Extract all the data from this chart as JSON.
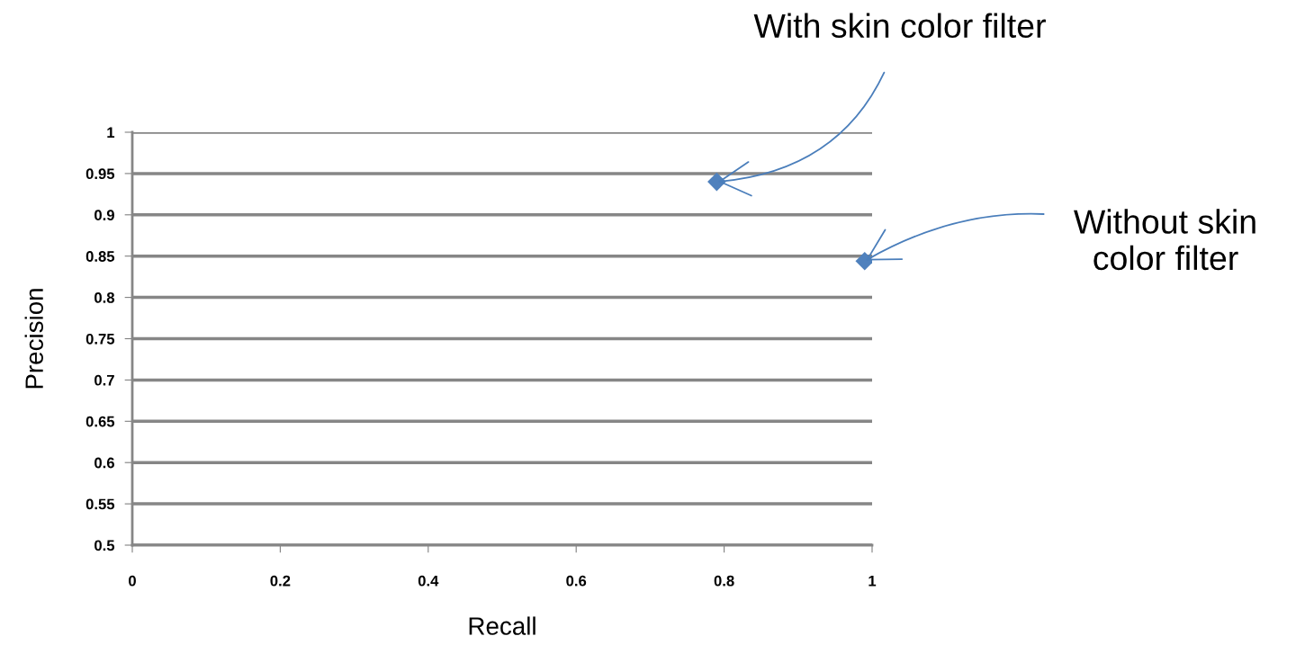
{
  "chart_data": {
    "type": "scatter",
    "xlabel": "Recall",
    "ylabel": "Precision",
    "series": [
      {
        "color": "#4f81bd",
        "x": [
          0.79,
          0.99
        ],
        "values": [
          0.94,
          0.844
        ]
      }
    ],
    "marker": "diamond",
    "xlim": [
      0,
      1
    ],
    "xticks": [
      0,
      0.2,
      0.4,
      0.6,
      0.8,
      1
    ],
    "ylim": [
      0.5,
      1
    ],
    "yticks": [
      0.5,
      0.55,
      0.6,
      0.65,
      0.7,
      0.75,
      0.8,
      0.85,
      0.9,
      0.95,
      1
    ],
    "grid": "y",
    "annotations": [
      {
        "text": "With skin color filter",
        "x": 0.79,
        "y": 0.94
      },
      {
        "text": "Without skin\ncolor filter",
        "x": 0.99,
        "y": 0.844
      }
    ]
  }
}
